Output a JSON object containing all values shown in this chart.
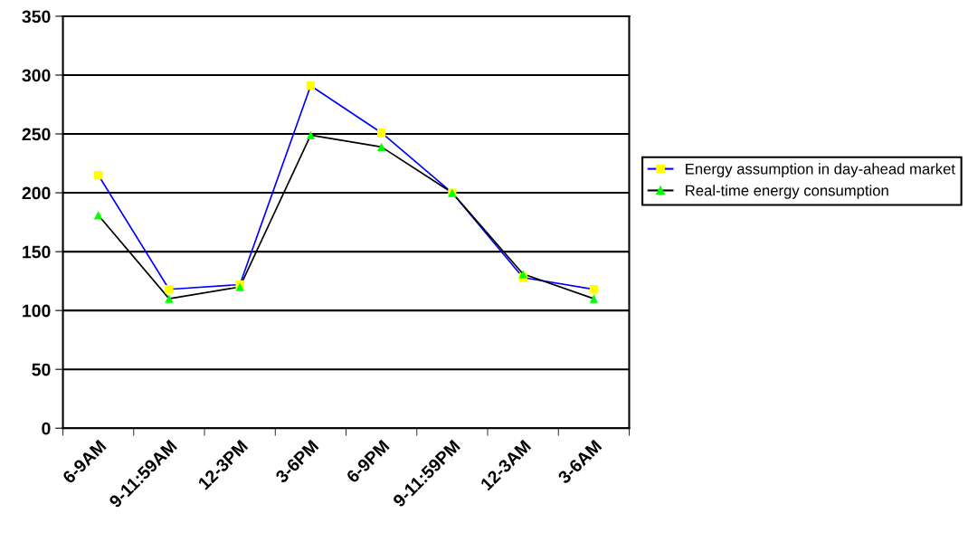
{
  "chart_data": {
    "type": "line",
    "categories": [
      "6-9AM",
      "9-11:59AM",
      "12-3PM",
      "3-6PM",
      "6-9PM",
      "9-11:59PM",
      "12-3AM",
      "3-6AM"
    ],
    "series": [
      {
        "name": "Energy assumption in day-ahead market",
        "color": "#0000ff",
        "colors": [
          "#ffff00",
          "#ffff00",
          "#ffff00",
          "#ffff00",
          "#ffff00",
          "#ffff00",
          "#ffff00",
          "#ffff00"
        ],
        "marker": "square",
        "values": [
          215,
          118,
          122,
          291,
          251,
          200,
          128,
          118
        ]
      },
      {
        "name": "Real-time energy consumption",
        "color": "#000000",
        "colors": [
          "#00ff00",
          "#00ff00",
          "#00ff00",
          "#00ff00",
          "#00ff00",
          "#00ff00",
          "#00ff00",
          "#00ff00"
        ],
        "marker": "triangle",
        "values": [
          181,
          110,
          120,
          249,
          239,
          200,
          131,
          110
        ]
      }
    ],
    "ylim": [
      0,
      350
    ],
    "yticks": [
      0,
      50,
      100,
      150,
      200,
      250,
      300,
      350
    ],
    "grid": "y",
    "legend": "right"
  }
}
